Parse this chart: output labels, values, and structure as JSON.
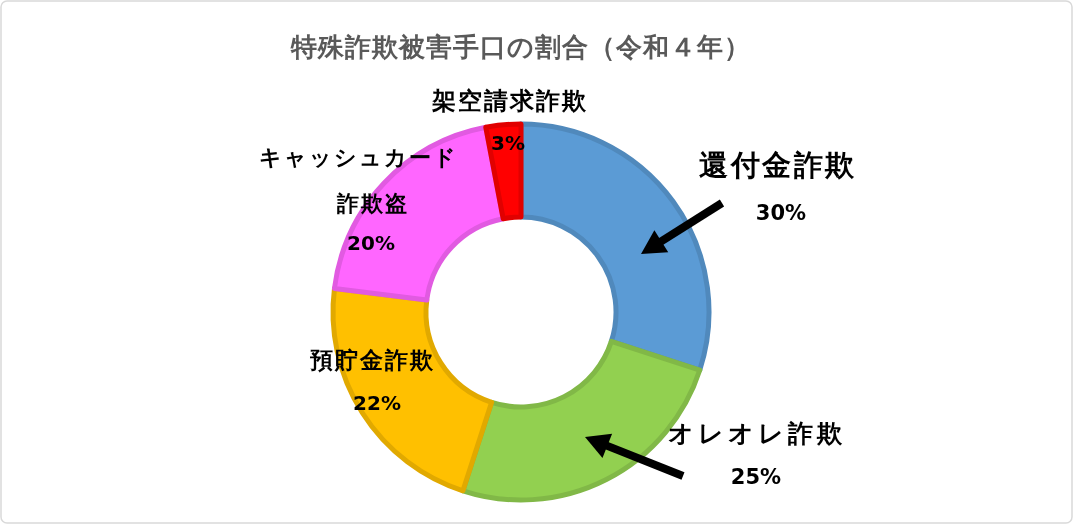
{
  "chart_data": {
    "type": "donut",
    "title": "特殊詐欺被害手口の割合（令和４年）",
    "categories": [
      "還付金詐欺",
      "オレオレ詐欺",
      "預貯金詐欺",
      "キャッシュカード詐欺盗",
      "架空請求詐欺"
    ],
    "values": [
      30,
      25,
      22,
      20,
      3
    ],
    "colors": [
      "#5b9bd5",
      "#92d050",
      "#ffc000",
      "#ff66ff",
      "#ff0000"
    ],
    "value_labels": [
      "30%",
      "25%",
      "22%",
      "20%",
      "3%"
    ]
  }
}
